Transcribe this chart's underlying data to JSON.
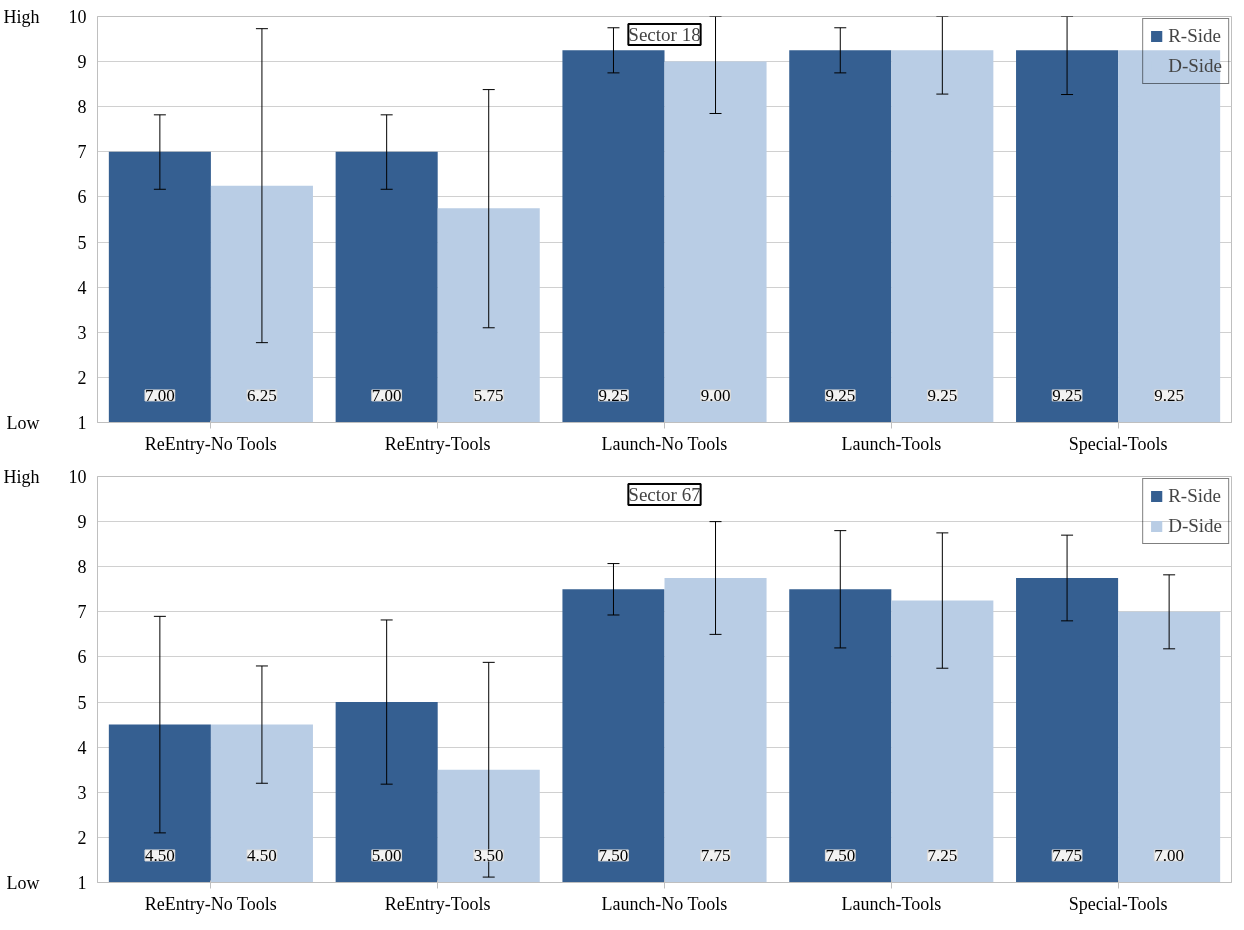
{
  "chart_data": [
    {
      "type": "bar",
      "title": "Sector 18",
      "categories": [
        "ReEntry-No Tools",
        "ReEntry-Tools",
        "Launch-No Tools",
        "Launch-Tools",
        "Special-Tools"
      ],
      "series": [
        {
          "name": "R-Side",
          "color": "#355f91",
          "values": [
            7.0,
            7.0,
            9.25,
            9.25,
            9.25
          ],
          "value_labels": [
            "7.00",
            "7.00",
            "9.25",
            "9.25",
            "9.25"
          ],
          "errors": [
            [
              6.17,
              7.82
            ],
            [
              6.17,
              7.82
            ],
            [
              8.75,
              9.75
            ],
            [
              8.75,
              9.75
            ],
            [
              8.27,
              10
            ]
          ]
        },
        {
          "name": "D-Side",
          "color": "#b9cde5",
          "values": [
            6.25,
            5.75,
            9.0,
            9.25,
            9.25
          ],
          "value_labels": [
            "6.25",
            "5.75",
            "9.00",
            "9.25",
            "9.25"
          ],
          "errors": [
            [
              2.77,
              9.73
            ],
            [
              3.1,
              8.38
            ],
            [
              7.85,
              10
            ],
            [
              8.28,
              10
            ],
            null
          ]
        }
      ],
      "ylim": [
        1,
        10
      ],
      "yticks": [
        1,
        2,
        3,
        4,
        5,
        6,
        7,
        8,
        9,
        10
      ],
      "annotations": [
        "High",
        "Low"
      ],
      "grid": "y",
      "legend": "top right"
    },
    {
      "type": "bar",
      "title": "Sector 67",
      "categories": [
        "ReEntry-No Tools",
        "ReEntry-Tools",
        "Launch-No Tools",
        "Launch-Tools",
        "Special-Tools"
      ],
      "series": [
        {
          "name": "R-Side",
          "color": "#355f91",
          "values": [
            4.5,
            5.0,
            7.5,
            7.5,
            7.75
          ],
          "value_labels": [
            "4.50",
            "5.00",
            "7.50",
            "7.50",
            "7.75"
          ],
          "errors": [
            [
              2.1,
              6.9
            ],
            [
              3.18,
              6.82
            ],
            [
              6.93,
              8.07
            ],
            [
              6.2,
              8.8
            ],
            [
              6.8,
              8.7
            ]
          ]
        },
        {
          "name": "D-Side",
          "color": "#b9cde5",
          "values": [
            4.5,
            3.5,
            7.75,
            7.25,
            7.0
          ],
          "value_labels": [
            "4.50",
            "3.50",
            "7.75",
            "7.25",
            "7.00"
          ],
          "errors": [
            [
              3.2,
              5.8
            ],
            [
              1.12,
              5.88
            ],
            [
              6.5,
              9.0
            ],
            [
              5.75,
              8.75
            ],
            [
              6.18,
              7.82
            ]
          ]
        }
      ],
      "ylim": [
        1,
        10
      ],
      "yticks": [
        1,
        2,
        3,
        4,
        5,
        6,
        7,
        8,
        9,
        10
      ],
      "annotations": [
        "High",
        "Low"
      ],
      "grid": "y",
      "legend": "top right"
    }
  ]
}
